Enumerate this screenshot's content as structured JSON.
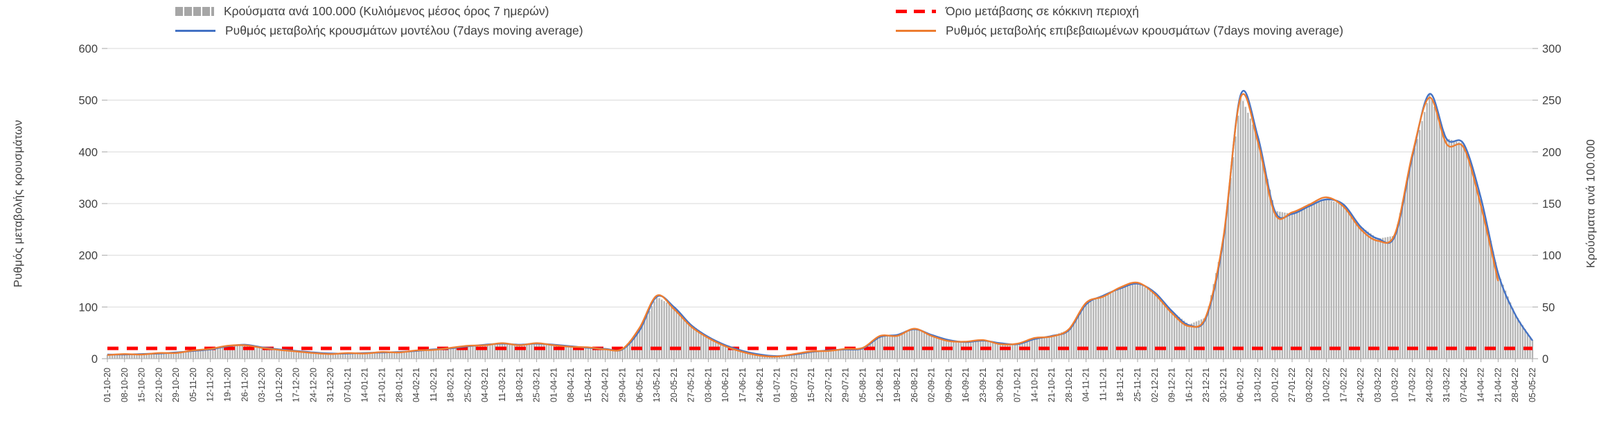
{
  "legend": {
    "items": [
      {
        "label": "Κρούσματα ανά 100.000 (Κυλιόμενος μέσος όρος 7 ημερών)",
        "swatch": "gray-bars"
      },
      {
        "label": "Όριο μετάβασης σε κόκκινη περιοχή",
        "swatch": "red-dashed-line"
      },
      {
        "label": "Ρυθμός μεταβολής κρουσμάτων μοντέλου (7days moving average)",
        "swatch": "blue-line"
      },
      {
        "label": "Ρυθμός μεταβολής επιβεβαιωμένων κρουσμάτων (7days moving average)",
        "swatch": "orange-line"
      }
    ]
  },
  "axes": {
    "left_label": "Ρυθμός μεταβολής κρουσμάτων",
    "right_label": "Κρούσματα ανά 100.000"
  },
  "colors": {
    "bars": "#b4b4b4",
    "model_line": "#4472c4",
    "confirmed_line": "#ed7d31",
    "threshold": "#ff0000",
    "grid": "#d9d9d9",
    "axis": "#a6a6a6",
    "text": "#3f3f3f"
  },
  "chart_data": {
    "type": "bar+line dual-axis combo",
    "title": "",
    "xlabel": "",
    "left_ylabel": "Ρυθμός μεταβολής κρουσμάτων",
    "right_ylabel": "Κρούσματα ανά 100.000",
    "left_ylim": [
      0,
      600
    ],
    "right_ylim": [
      0,
      300
    ],
    "left_ticks": [
      0,
      100,
      200,
      300,
      400,
      500,
      600
    ],
    "right_ticks": [
      0,
      50,
      100,
      150,
      200,
      250,
      300
    ],
    "grid": true,
    "legend_position": "top",
    "x": [
      "01-10-20",
      "08-10-20",
      "15-10-20",
      "22-10-20",
      "29-10-20",
      "05-11-20",
      "12-11-20",
      "19-11-20",
      "26-11-20",
      "03-12-20",
      "10-12-20",
      "17-12-20",
      "24-12-20",
      "31-12-20",
      "07-01-21",
      "14-01-21",
      "21-01-21",
      "28-01-21",
      "04-02-21",
      "11-02-21",
      "18-02-21",
      "25-02-21",
      "04-03-21",
      "11-03-21",
      "18-03-21",
      "25-03-21",
      "01-04-21",
      "08-04-21",
      "15-04-21",
      "22-04-21",
      "29-04-21",
      "06-05-21",
      "13-05-21",
      "20-05-21",
      "27-05-21",
      "03-06-21",
      "10-06-21",
      "17-06-21",
      "24-06-21",
      "01-07-21",
      "08-07-21",
      "15-07-21",
      "22-07-21",
      "29-07-21",
      "05-08-21",
      "12-08-21",
      "19-08-21",
      "26-08-21",
      "02-09-21",
      "09-09-21",
      "16-09-21",
      "23-09-21",
      "30-09-21",
      "07-10-21",
      "14-10-21",
      "21-10-21",
      "28-10-21",
      "04-11-21",
      "11-11-21",
      "18-11-21",
      "25-11-21",
      "02-12-21",
      "09-12-21",
      "16-12-21",
      "23-12-21",
      "30-12-21",
      "06-01-22",
      "13-01-22",
      "20-01-22",
      "27-01-22",
      "03-02-22",
      "10-02-22",
      "17-02-22",
      "24-02-22",
      "03-03-22",
      "10-03-22",
      "17-03-22",
      "24-03-22",
      "31-03-22",
      "07-04-22",
      "14-04-22",
      "21-04-22",
      "28-04-22",
      "05-05-22"
    ],
    "bars": {
      "name": "Κρούσματα ανά 100.000 (Κυλιόμενος μέσος όρος 7 ημερών)",
      "axis": "right",
      "values": [
        4,
        4,
        5,
        5,
        6,
        8,
        9,
        12,
        14,
        11,
        9,
        8,
        6,
        5,
        5,
        6,
        6,
        7,
        8,
        9,
        10,
        12,
        14,
        15,
        14,
        15,
        14,
        12,
        11,
        10,
        9,
        28,
        60,
        50,
        33,
        21,
        13,
        8,
        4,
        3,
        4,
        7,
        8,
        9,
        10,
        21,
        23,
        29,
        23,
        18,
        16,
        18,
        15,
        14,
        19,
        22,
        28,
        53,
        61,
        68,
        73,
        64,
        46,
        33,
        40,
        115,
        255,
        215,
        143,
        140,
        148,
        154,
        149,
        128,
        116,
        119,
        195,
        256,
        213,
        208,
        155,
        83,
        43,
        18
      ]
    },
    "series": [
      {
        "name": "Ρυθμός μεταβολής κρουσμάτων μοντέλου (7days moving average)",
        "axis": "left",
        "color": "#4472c4",
        "values": [
          8,
          8,
          9,
          10,
          12,
          15,
          18,
          24,
          27,
          22,
          18,
          15,
          12,
          10,
          10,
          11,
          12,
          13,
          15,
          18,
          20,
          24,
          27,
          29,
          27,
          29,
          27,
          24,
          21,
          19,
          18,
          55,
          120,
          100,
          65,
          42,
          26,
          15,
          8,
          5,
          8,
          13,
          16,
          18,
          20,
          42,
          46,
          57,
          46,
          36,
          32,
          35,
          30,
          28,
          38,
          44,
          55,
          105,
          122,
          136,
          145,
          128,
          92,
          65,
          80,
          230,
          510,
          430,
          285,
          280,
          295,
          308,
          298,
          255,
          232,
          238,
          390,
          512,
          425,
          415,
          310,
          165,
          85,
          35
        ]
      },
      {
        "name": "Ρυθμός μεταβολής επιβεβαιωμένων κρουσμάτων (7days moving average)",
        "axis": "left",
        "color": "#ed7d31",
        "values": [
          7,
          9,
          8,
          11,
          11,
          16,
          19,
          25,
          26,
          21,
          17,
          14,
          11,
          9,
          11,
          10,
          13,
          12,
          16,
          17,
          21,
          25,
          26,
          30,
          26,
          30,
          26,
          23,
          22,
          18,
          19,
          60,
          122,
          96,
          62,
          40,
          24,
          13,
          6,
          4,
          9,
          14,
          15,
          19,
          21,
          44,
          44,
          58,
          44,
          34,
          33,
          36,
          28,
          29,
          40,
          43,
          57,
          108,
          120,
          138,
          147,
          125,
          88,
          63,
          83,
          235,
          505,
          420,
          280,
          283,
          298,
          312,
          294,
          250,
          228,
          242,
          395,
          505,
          415,
          408,
          295,
          150,
          null,
          null
        ]
      }
    ],
    "threshold": {
      "name": "Όριο μετάβασης σε κόκκινη περιοχή",
      "axis": "right",
      "value": 10
    }
  }
}
